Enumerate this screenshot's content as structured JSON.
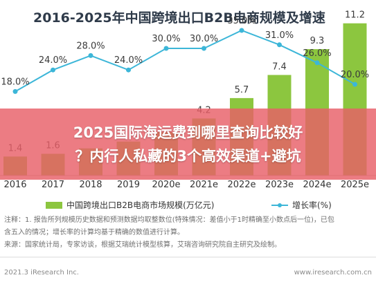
{
  "title": "2016-2025年中国跨境出口B2B电商规模及增速",
  "banner": {
    "line1": "2025国际海运费到哪里查询比较好",
    "line2": "？内行人私藏的3个高效渠道+避坑"
  },
  "chart_data": {
    "type": "bar",
    "categories": [
      "2016",
      "2017",
      "2018",
      "2019",
      "2020e",
      "2021e",
      "2022e",
      "2023e",
      "2024e",
      "2025e"
    ],
    "series": [
      {
        "name": "中国跨境出口B2B电商市场规模(万亿元)",
        "type": "bar",
        "values": [
          1.4,
          1.6,
          2.0,
          2.5,
          3.2,
          4.2,
          5.7,
          7.4,
          9.3,
          11.2
        ],
        "value_labels": [
          "1.4",
          "1.6",
          "",
          "",
          "",
          "4.2",
          "5.7",
          "7.4",
          "9.3",
          "11.2"
        ],
        "color": "#8cc63f"
      },
      {
        "name": "增长率(%)",
        "type": "line",
        "values": [
          18.0,
          24.0,
          28.0,
          24.0,
          30.0,
          30.0,
          35.0,
          31.0,
          26.0,
          20.0
        ],
        "value_labels": [
          "18.0%",
          "24.0%",
          "28.0%",
          "24.0%",
          "30.0%",
          "30.0%",
          "35.0%",
          "31.0%",
          "26.0%",
          "20.0%"
        ],
        "color": "#3cb6d8"
      }
    ],
    "ylim_bar": [
      0,
      12
    ],
    "ylim_line": [
      0,
      40
    ],
    "legend_position": "bottom"
  },
  "notes": {
    "line1": "注释：1. 报告所列规模历史数据和预测数据均取整数位(特殊情况：差值小于1时精确至小数点后一位)，已包",
    "line2": "含五入的情况；增长率的计算均基于精确的数值进行计算。",
    "line3": "来源：国家统计局，专家访谈，根据艾瑞统计模型核算，艾瑞咨询研究院自主研究及绘制。"
  },
  "footer": {
    "left": "2021.3 iResearch Inc.",
    "right": "www.iresearch.com.cn"
  }
}
